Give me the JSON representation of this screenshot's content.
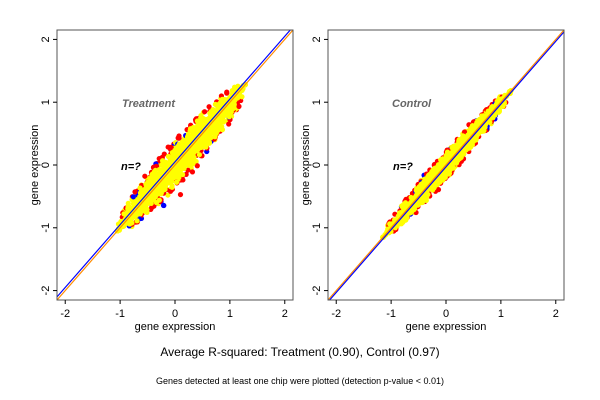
{
  "chart_data": [
    {
      "type": "scatter",
      "title": "Treatment",
      "annotation": "n=?",
      "xlabel": "gene expression",
      "ylabel": "gene expression",
      "xlim": [
        -2.15,
        2.15
      ],
      "ylim": [
        -2.15,
        2.15
      ],
      "xticks": [
        "-2",
        "-1",
        "0",
        "1",
        "2"
      ],
      "yticks": [
        "-2",
        "-1",
        "0",
        "1",
        "2"
      ],
      "tick_values": [
        -2,
        -1,
        0,
        1,
        2
      ],
      "grid": false,
      "point_colors": {
        "main": "#ffff00",
        "outlier": "#ff0000",
        "extreme": "#0000ff"
      },
      "cloud": {
        "spread_along": 0.9,
        "spread_across": 0.42,
        "range": [
          -1.05,
          1.28
        ],
        "r_squared": 0.9
      },
      "lines": [
        {
          "name": "identity",
          "color": "#ff8c00",
          "slope": 1,
          "intercept": 0
        },
        {
          "name": "fit",
          "color": "#0000ff",
          "slope": 1.0,
          "intercept": 0.05
        }
      ]
    },
    {
      "type": "scatter",
      "title": "Control",
      "annotation": "n=?",
      "xlabel": "gene expression",
      "ylabel": "gene expression",
      "xlim": [
        -2.15,
        2.15
      ],
      "ylim": [
        -2.15,
        2.15
      ],
      "xticks": [
        "-2",
        "-1",
        "0",
        "1",
        "2"
      ],
      "yticks": [
        "-2",
        "-1",
        "0",
        "1",
        "2"
      ],
      "tick_values": [
        -2,
        -1,
        0,
        1,
        2
      ],
      "grid": false,
      "point_colors": {
        "main": "#ffff00",
        "outlier": "#ff0000",
        "extreme": "#0000ff"
      },
      "cloud": {
        "spread_along": 0.85,
        "spread_across": 0.25,
        "range": [
          -1.15,
          1.18
        ],
        "r_squared": 0.97
      },
      "lines": [
        {
          "name": "identity",
          "color": "#ff8c00",
          "slope": 1,
          "intercept": 0
        },
        {
          "name": "fit",
          "color": "#0000ff",
          "slope": 1.0,
          "intercept": -0.03
        }
      ]
    }
  ],
  "footer": {
    "summary": "Average R-squared: Treatment (0.90), Control (0.97)",
    "note": "Genes detected at least one chip were plotted (detection p-value < 0.01)"
  }
}
